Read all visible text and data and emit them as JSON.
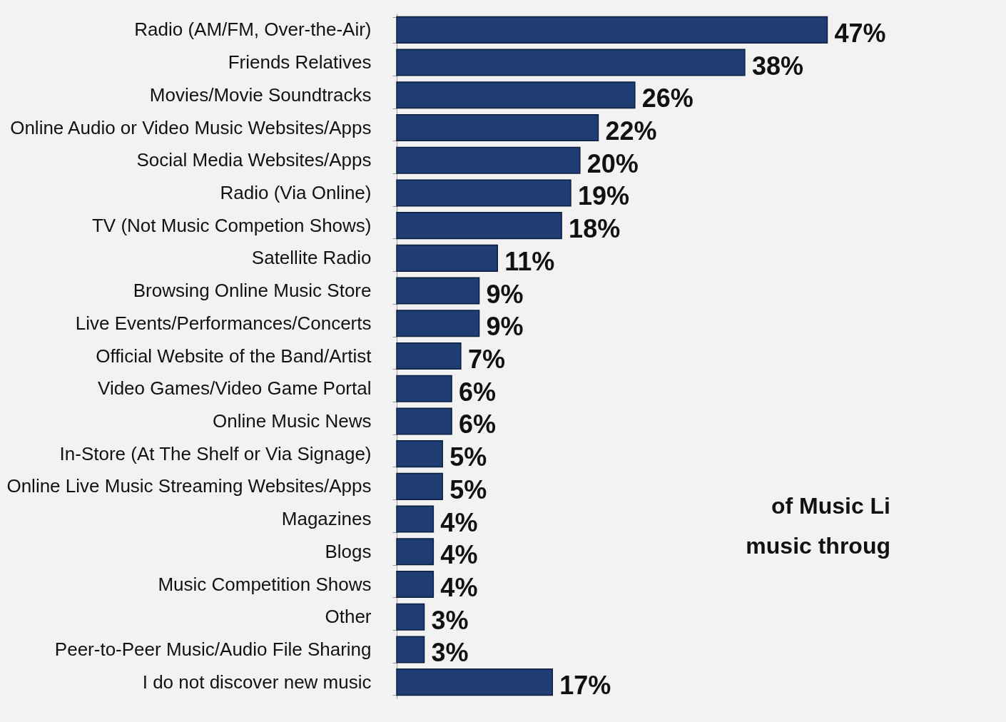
{
  "chart_data": {
    "type": "bar",
    "orientation": "horizontal",
    "color": "#1f3d73",
    "categories": [
      "Radio (AM/FM, Over-the-Air)",
      "Friends Relatives",
      "Movies/Movie Soundtracks",
      "Online Audio or Video Music Websites/Apps",
      "Social Media Websites/Apps",
      "Radio (Via Online)",
      "TV (Not Music Competion Shows)",
      "Satellite Radio",
      "Browsing Online Music Store",
      "Live Events/Performances/Concerts",
      "Official Website of the Band/Artist",
      "Video Games/Video Game Portal",
      "Online Music News",
      "In-Store (At The Shelf or Via Signage)",
      "Online Live Music Streaming Websites/Apps",
      "Magazines",
      "Blogs",
      "Music Competition Shows",
      "Other",
      "Peer-to-Peer Music/Audio File Sharing",
      "I do not discover new music"
    ],
    "values": [
      47,
      38,
      26,
      22,
      20,
      19,
      18,
      11,
      9,
      9,
      7,
      6,
      6,
      5,
      5,
      4,
      4,
      4,
      3,
      3,
      17
    ],
    "value_labels": [
      "47%",
      "38%",
      "26%",
      "22%",
      "20%",
      "19%",
      "18%",
      "11%",
      "9%",
      "9%",
      "7%",
      "6%",
      "6%",
      "5%",
      "5%",
      "4%",
      "4%",
      "4%",
      "3%",
      "3%",
      "17%"
    ],
    "annotations": [
      "of Music Li",
      "music throug"
    ]
  }
}
